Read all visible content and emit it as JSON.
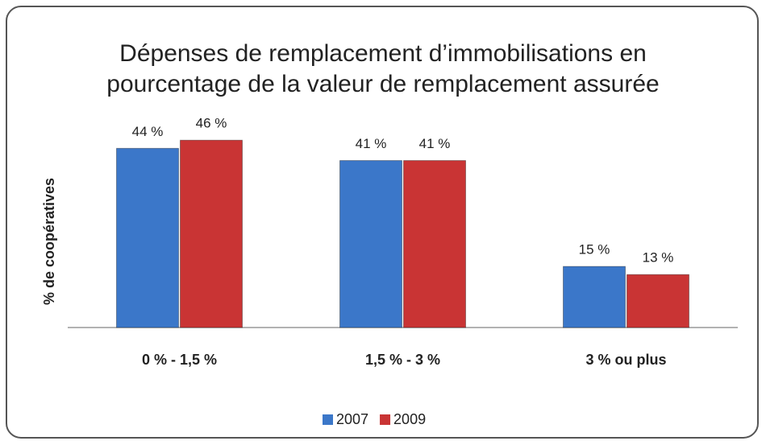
{
  "chart_data": {
    "type": "bar",
    "title": [
      "Dépenses de remplacement d’immobilisations en",
      "pourcentage de la valeur de remplacement assurée"
    ],
    "y_label": "% de coopératives",
    "categories": [
      "0 % - 1,5 %",
      "1,5 % - 3 %",
      "3 % ou plus"
    ],
    "series": [
      {
        "name": "2007",
        "color": "#3b77c9",
        "values": [
          44,
          41,
          15
        ],
        "value_labels": [
          "44 %",
          "41 %",
          "15 %"
        ]
      },
      {
        "name": "2009",
        "color": "#c93434",
        "values": [
          46,
          41,
          13
        ],
        "value_labels": [
          "46 %",
          "41 %",
          "13 %"
        ]
      }
    ],
    "ylim": [
      0,
      50
    ]
  }
}
